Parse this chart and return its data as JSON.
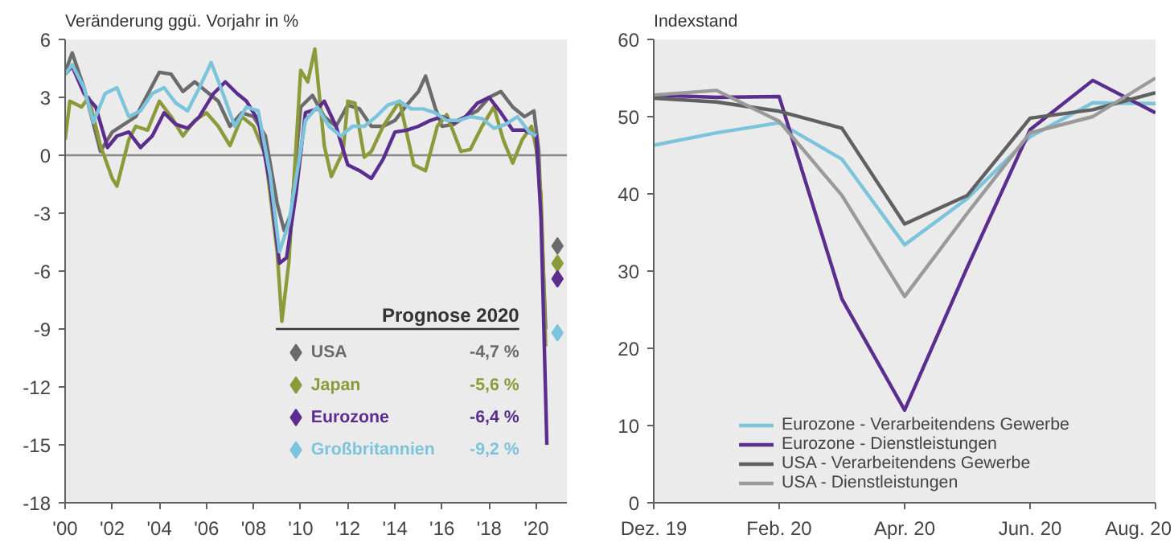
{
  "chart_data": [
    {
      "type": "line",
      "ylabel": "Veränderung ggü. Vorjahr in %",
      "legend_title": "Prognose 2020",
      "legend": "bottom right",
      "grid": false,
      "annotations": [
        "-4,7 %",
        "-5,6 %",
        "-6,4 %",
        "-9,2 %"
      ],
      "ref_lines": [
        {
          "axis": "y",
          "value": 0,
          "color": "#888888"
        }
      ],
      "xlim": [
        2000,
        2021.3
      ],
      "xticks": [
        {
          "value": 2000,
          "label": "'00"
        },
        {
          "value": 2002,
          "label": "'02"
        },
        {
          "value": 2004,
          "label": "'04"
        },
        {
          "value": 2006,
          "label": "'06"
        },
        {
          "value": 2008,
          "label": "'08"
        },
        {
          "value": 2010,
          "label": "'10"
        },
        {
          "value": 2012,
          "label": "'12"
        },
        {
          "value": 2014,
          "label": "'14"
        },
        {
          "value": 2016,
          "label": "'16"
        },
        {
          "value": 2018,
          "label": "'18"
        },
        {
          "value": 2020,
          "label": "'20"
        }
      ],
      "ylim": [
        -18,
        6
      ],
      "yticks": [
        -18,
        -15,
        -12,
        -9,
        -6,
        -3,
        0,
        3,
        6
      ],
      "series": [
        {
          "type": "line",
          "color": "#6b6b6b",
          "x": [
            2000,
            2000.3,
            2000.8,
            2001.5,
            2002,
            2003,
            2004,
            2004.5,
            2005,
            2005.5,
            2006,
            2006.5,
            2007,
            2007.5,
            2008,
            2008.5,
            2009,
            2009.3,
            2009.6,
            2010,
            2010.5,
            2011,
            2011.5,
            2012,
            2012.5,
            2013,
            2013.5,
            2014,
            2014.5,
            2015,
            2015.3,
            2015.7,
            2016,
            2016.5,
            2017,
            2017.5,
            2018,
            2018.5,
            2019,
            2019.5,
            2019.9,
            2020.1,
            2020.4
          ],
          "values": [
            4.3,
            5.3,
            3.5,
            0.2,
            1.2,
            2.0,
            4.3,
            4.2,
            3.3,
            3.8,
            3.3,
            2.8,
            1.5,
            2.2,
            2.0,
            1.0,
            -2.5,
            -3.9,
            -3.0,
            2.5,
            3.1,
            2.0,
            1.5,
            2.6,
            2.4,
            1.5,
            1.5,
            1.8,
            2.6,
            3.3,
            4.1,
            2.5,
            1.5,
            1.6,
            2.0,
            2.3,
            3.0,
            3.3,
            2.5,
            2.0,
            2.3,
            0.3,
            -9.0
          ]
        },
        {
          "type": "line",
          "color": "#8c9a3a",
          "x": [
            2000,
            2000.2,
            2000.7,
            2001,
            2001.5,
            2002,
            2002.2,
            2002.7,
            2003,
            2003.5,
            2004,
            2004.5,
            2005,
            2005.5,
            2006,
            2006.5,
            2007,
            2007.5,
            2008,
            2008.5,
            2009,
            2009.2,
            2009.5,
            2010,
            2010.3,
            2010.6,
            2011,
            2011.3,
            2011.8,
            2012,
            2012.3,
            2012.7,
            2013,
            2013.5,
            2014.2,
            2014.8,
            2015.3,
            2015.8,
            2016.2,
            2016.8,
            2017.2,
            2017.7,
            2018.2,
            2018.6,
            2019,
            2019.4,
            2019.8,
            2020.0,
            2020.2,
            2020.4
          ],
          "values": [
            0.8,
            2.8,
            2.5,
            3.0,
            0.5,
            -1.2,
            -1.6,
            0.8,
            1.5,
            1.3,
            2.8,
            2.0,
            1.0,
            1.8,
            2.2,
            1.5,
            0.5,
            2.0,
            1.5,
            0.0,
            -5.0,
            -8.6,
            -5.5,
            4.4,
            3.8,
            5.5,
            0.5,
            -1.1,
            0.2,
            2.8,
            2.7,
            -0.1,
            0.2,
            1.5,
            2.8,
            -0.5,
            -0.8,
            1.5,
            2.1,
            0.2,
            0.3,
            1.5,
            2.5,
            0.8,
            -0.4,
            0.8,
            1.5,
            0.3,
            -2.0,
            -9.9
          ]
        },
        {
          "type": "line",
          "color": "#5b2d8e",
          "x": [
            2000,
            2000.3,
            2000.8,
            2001.3,
            2001.8,
            2002.2,
            2002.7,
            2003.2,
            2003.7,
            2004.2,
            2004.7,
            2005.2,
            2005.7,
            2006.3,
            2006.8,
            2007.3,
            2007.7,
            2008.2,
            2008.7,
            2009.1,
            2009.4,
            2009.8,
            2010.2,
            2010.7,
            2011,
            2011.5,
            2012,
            2012.5,
            2013,
            2013.5,
            2014,
            2014.5,
            2015,
            2015.5,
            2016,
            2016.5,
            2017,
            2017.5,
            2018,
            2018.5,
            2019,
            2019.5,
            2020.0,
            2020.2,
            2020.45
          ],
          "values": [
            4.2,
            4.6,
            3.2,
            2.5,
            0.4,
            1.0,
            1.2,
            0.4,
            1.0,
            2.2,
            1.6,
            1.4,
            2.0,
            3.2,
            3.8,
            3.2,
            2.8,
            1.8,
            -1.5,
            -5.6,
            -5.3,
            -2.0,
            2.2,
            2.4,
            2.8,
            1.5,
            -0.5,
            -0.8,
            -1.2,
            -0.2,
            1.2,
            1.3,
            1.5,
            1.8,
            2.0,
            1.7,
            2.0,
            2.7,
            3.0,
            2.2,
            1.3,
            1.3,
            1.0,
            -3.2,
            -15.0
          ]
        },
        {
          "type": "line",
          "color": "#7cc4dc",
          "x": [
            2000,
            2000.3,
            2000.8,
            2001.2,
            2001.7,
            2002.2,
            2002.7,
            2003.2,
            2003.7,
            2004.2,
            2004.7,
            2005.2,
            2005.7,
            2006.2,
            2006.7,
            2007.2,
            2007.7,
            2008.2,
            2008.7,
            2009.1,
            2009.5,
            2010.2,
            2010.7,
            2011.2,
            2011.7,
            2012.2,
            2012.7,
            2013.2,
            2013.7,
            2014.2,
            2014.7,
            2015.2,
            2015.7,
            2016.2,
            2016.7,
            2017.2,
            2017.7,
            2018.2,
            2018.7,
            2019.2,
            2019.7,
            2020.0
          ],
          "values": [
            4.2,
            4.7,
            3.5,
            1.7,
            3.2,
            3.5,
            2.0,
            2.3,
            3.2,
            3.5,
            2.7,
            2.3,
            3.5,
            4.8,
            3.2,
            1.5,
            2.5,
            2.3,
            -1.0,
            -5.0,
            -3.5,
            1.8,
            2.5,
            1.5,
            1.0,
            1.5,
            1.5,
            2.0,
            2.6,
            2.8,
            2.4,
            2.4,
            2.2,
            1.8,
            1.8,
            2.0,
            1.9,
            1.4,
            1.6,
            2.0,
            1.2,
            1.0
          ]
        },
        {
          "type": "scatter",
          "marker": "diamond",
          "name": "USA",
          "color": "#6b6b6b",
          "x": [
            2020.9
          ],
          "values": [
            -4.7
          ]
        },
        {
          "type": "scatter",
          "marker": "diamond",
          "name": "Japan",
          "color": "#8c9a3a",
          "x": [
            2020.9
          ],
          "values": [
            -5.6
          ]
        },
        {
          "type": "scatter",
          "marker": "diamond",
          "name": "Eurozone",
          "color": "#5b2d8e",
          "x": [
            2020.9
          ],
          "values": [
            -6.4
          ]
        },
        {
          "type": "scatter",
          "marker": "diamond",
          "name": "Großbritannien",
          "color": "#7cc4dc",
          "x": [
            2020.9
          ],
          "values": [
            -9.2
          ]
        }
      ]
    },
    {
      "type": "line",
      "ylabel": "Indexstand",
      "legend": "bottom",
      "grid": false,
      "categories": [
        "Dez. 19",
        null,
        "Feb. 20",
        null,
        "Apr. 20",
        null,
        "Jun. 20",
        null,
        "Aug. 20"
      ],
      "ylim": [
        0,
        60
      ],
      "yticks": [
        0,
        10,
        20,
        30,
        40,
        50,
        60
      ],
      "series": [
        {
          "name": "Eurozone - Verarbeitendens Gewerbe",
          "color": "#7cc4dc",
          "values": [
            46.3,
            47.9,
            49.2,
            44.5,
            33.4,
            39.4,
            47.4,
            51.8,
            51.7
          ]
        },
        {
          "name": "Eurozone - Dienstleistungen",
          "color": "#5b2d8e",
          "values": [
            52.8,
            52.5,
            52.6,
            26.4,
            12.0,
            30.5,
            48.3,
            54.7,
            50.5
          ]
        },
        {
          "name": "USA - Verarbeitendens Gewerbe",
          "color": "#606060",
          "values": [
            52.4,
            51.9,
            50.7,
            48.5,
            36.1,
            39.8,
            49.8,
            50.9,
            53.1
          ]
        },
        {
          "name": "USA - Dienstleistungen",
          "color": "#9a9a9a",
          "values": [
            52.8,
            53.4,
            49.4,
            39.8,
            26.7,
            37.5,
            47.9,
            50.0,
            55.0
          ]
        }
      ]
    }
  ]
}
